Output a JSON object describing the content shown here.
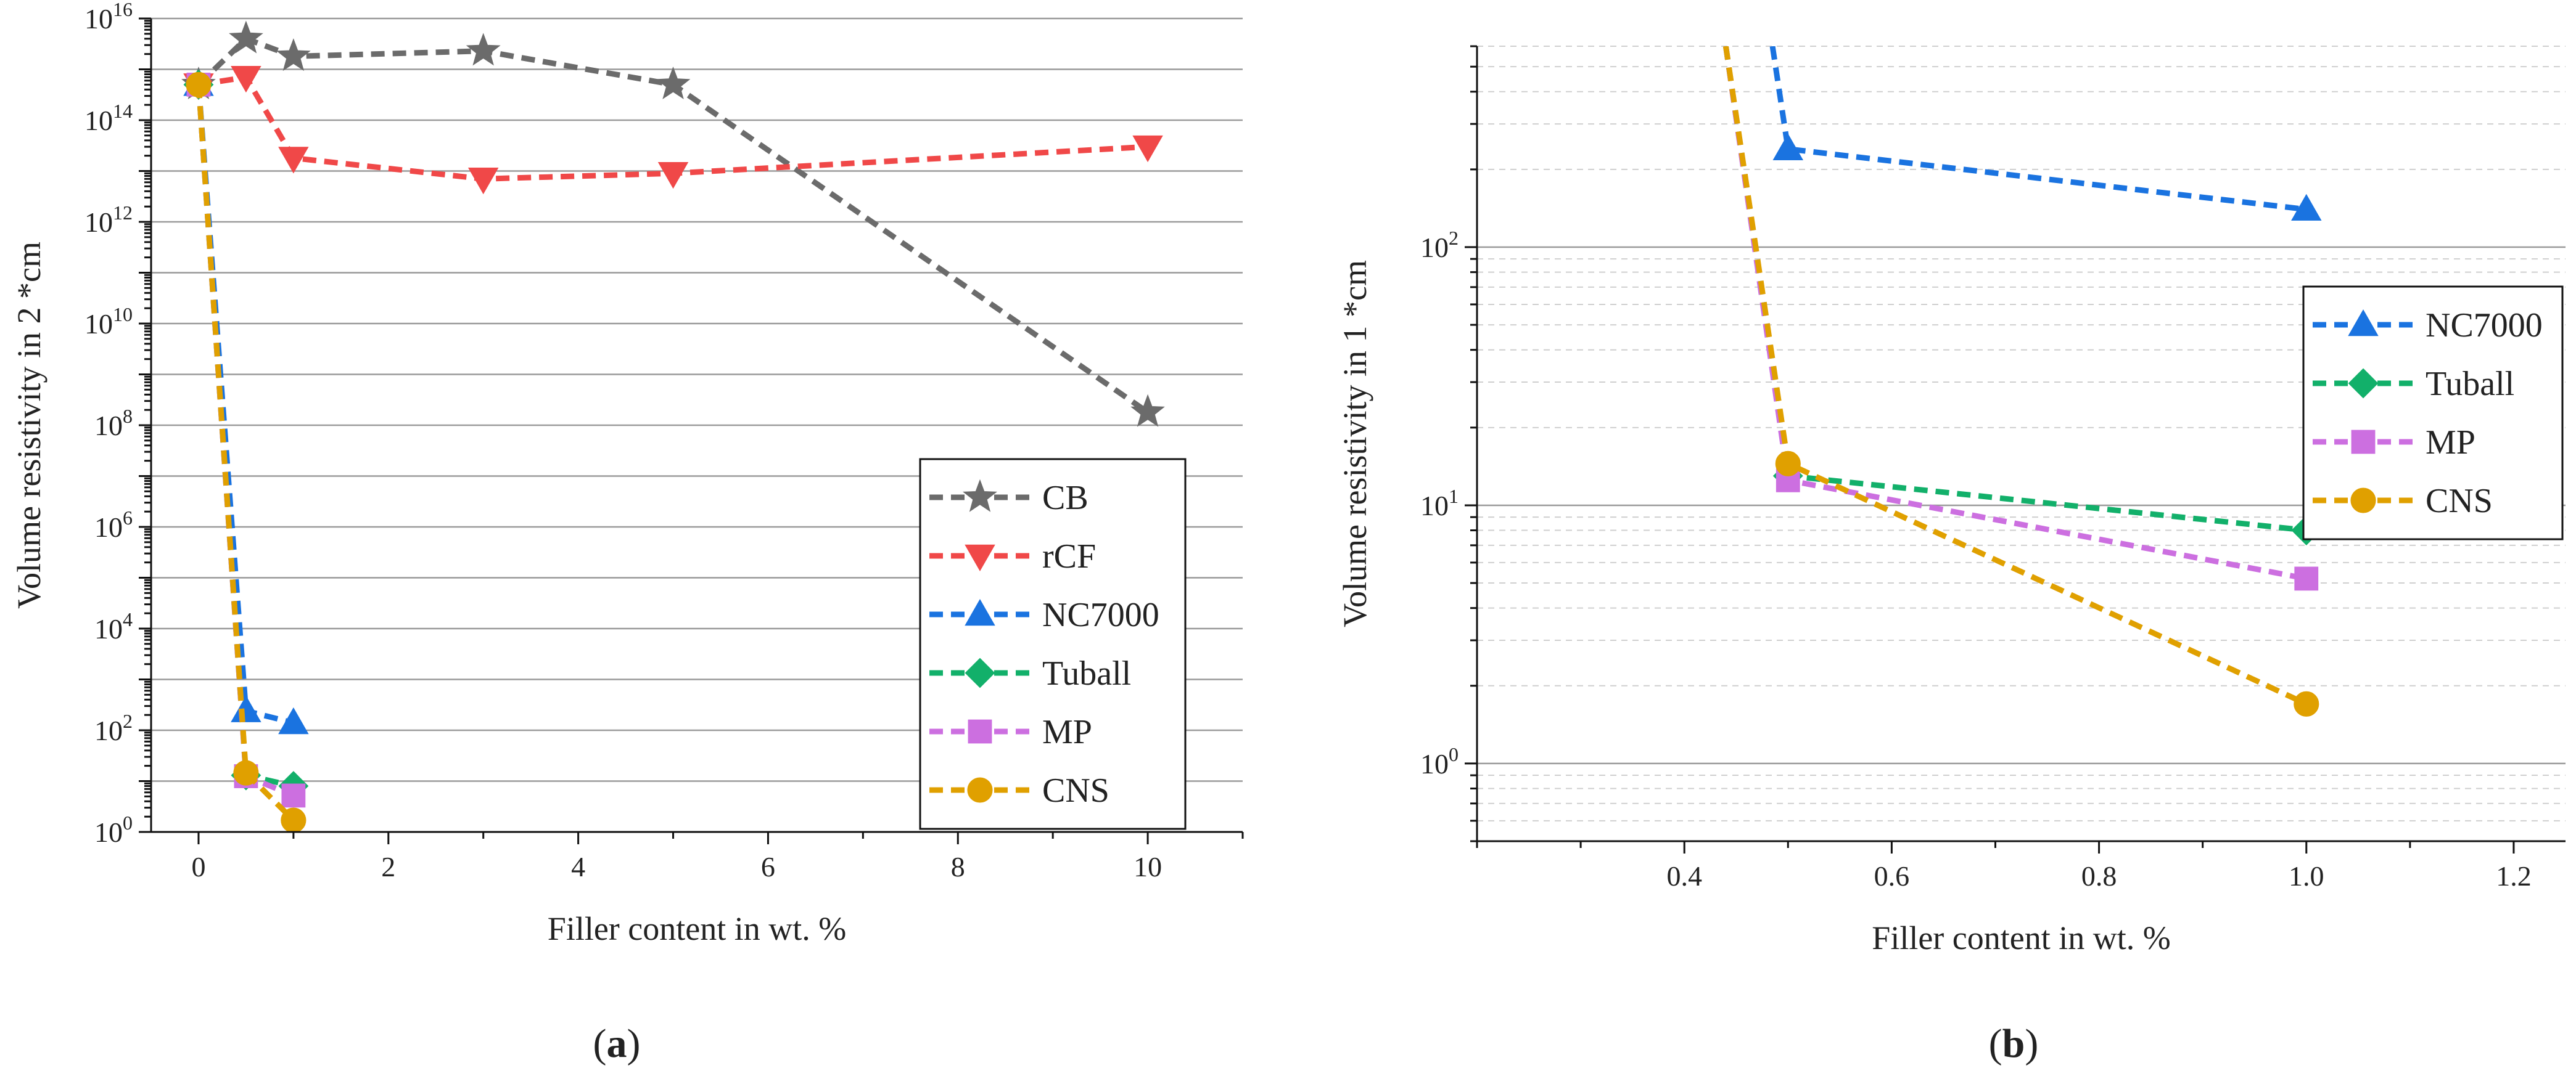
{
  "chart_data": [
    {
      "id": "a",
      "type": "line",
      "panel_label": "a",
      "xlabel": "Filler content in wt. %",
      "ylabel": "Volume resistivity in 2 *cm",
      "x_scale": "linear",
      "y_scale": "log",
      "xlim": [
        -0.5,
        11
      ],
      "ylim": [
        1,
        1e+16
      ],
      "xticks": [
        0,
        2,
        4,
        6,
        8,
        10
      ],
      "xtick_labels": [
        "0",
        "2",
        "4",
        "6",
        "8",
        "10"
      ],
      "ytick_exps": [
        0,
        2,
        4,
        6,
        8,
        10,
        12,
        14,
        16
      ],
      "ytick_base": "10",
      "grid": "horizontal",
      "legend_position": "lower-right",
      "series": [
        {
          "name": "CB",
          "color": "#6b6b6b",
          "marker": "star",
          "x": [
            0,
            0.5,
            1,
            3,
            5,
            10
          ],
          "y": [
            500000000000000.0,
            4000000000000000.0,
            1800000000000000.0,
            2300000000000000.0,
            500000000000000.0,
            180000000.0
          ]
        },
        {
          "name": "rCF",
          "color": "#f04848",
          "marker": "triangle-down",
          "x": [
            0,
            0.5,
            1,
            3,
            5,
            10
          ],
          "y": [
            500000000000000.0,
            700000000000000.0,
            18000000000000.0,
            7000000000000.0,
            9000000000000.0,
            30000000000000.0
          ]
        },
        {
          "name": "NC7000",
          "color": "#1a73e0",
          "marker": "triangle-up",
          "x": [
            0,
            0.5,
            1
          ],
          "y": [
            500000000000000.0,
            240,
            140
          ]
        },
        {
          "name": "Tuball",
          "color": "#12b06a",
          "marker": "diamond",
          "x": [
            0,
            0.5,
            1
          ],
          "y": [
            500000000000000.0,
            13,
            8
          ]
        },
        {
          "name": "MP",
          "color": "#cc6fe0",
          "marker": "square",
          "x": [
            0,
            0.5,
            1
          ],
          "y": [
            500000000000000.0,
            12.5,
            5.2
          ]
        },
        {
          "name": "CNS",
          "color": "#e0a000",
          "marker": "circle",
          "x": [
            0,
            0.5,
            1
          ],
          "y": [
            500000000000000.0,
            14.5,
            1.7
          ]
        }
      ]
    },
    {
      "id": "b",
      "type": "line",
      "panel_label": "b",
      "xlabel": "Filler content in wt. %",
      "ylabel": "Volume resistivity in 1 *cm",
      "x_scale": "linear",
      "y_scale": "log",
      "xlim": [
        0.2,
        1.25
      ],
      "ylim": [
        0.5,
        600
      ],
      "xticks": [
        0.4,
        0.6,
        0.8,
        1.0,
        1.2
      ],
      "xtick_labels": [
        "0.4",
        "0.6",
        "0.8",
        "1.0",
        "1.2"
      ],
      "ytick_exps": [
        0,
        1,
        2
      ],
      "ytick_base": "10",
      "grid": "horizontal major and minor",
      "legend_position": "right",
      "series": [
        {
          "name": "NC7000",
          "color": "#1a73e0",
          "marker": "triangle-up",
          "x": [
            0.485,
            0.5,
            1
          ],
          "y": [
            600,
            240,
            140
          ]
        },
        {
          "name": "Tuball",
          "color": "#12b06a",
          "marker": "diamond",
          "x": [
            0.44,
            0.5,
            1
          ],
          "y": [
            600,
            13,
            8
          ]
        },
        {
          "name": "MP",
          "color": "#cc6fe0",
          "marker": "square",
          "x": [
            0.44,
            0.5,
            1
          ],
          "y": [
            600,
            12.5,
            5.2
          ]
        },
        {
          "name": "CNS",
          "color": "#e0a000",
          "marker": "circle",
          "x": [
            0.44,
            0.5,
            1
          ],
          "y": [
            600,
            14.5,
            1.7
          ]
        }
      ]
    }
  ]
}
